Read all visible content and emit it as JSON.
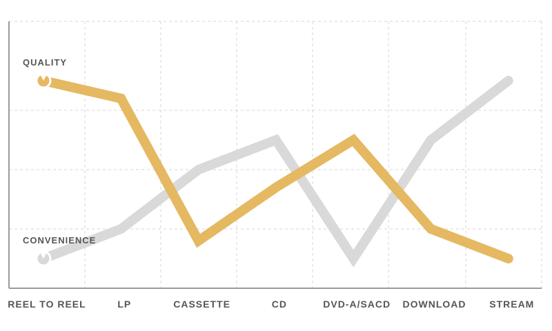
{
  "chart_data": {
    "type": "line",
    "categories": [
      "REEL TO REEL",
      "LP",
      "CASSETTE",
      "CD",
      "DVD-A/SACD",
      "DOWNLOAD",
      "STREAM"
    ],
    "series": [
      {
        "name": "CONVENIENCE",
        "color": "#d9d9d9",
        "values": [
          0.5,
          1.0,
          2.0,
          2.5,
          0.5,
          2.5,
          3.5
        ]
      },
      {
        "name": "QUALITY",
        "color": "#e5b862",
        "values": [
          3.5,
          3.2,
          0.8,
          1.7,
          2.5,
          1.0,
          0.5
        ]
      }
    ],
    "title": "",
    "xlabel": "",
    "ylabel": "",
    "ylim": [
      0,
      4.5
    ],
    "grid": true,
    "legend": "inline-left"
  }
}
